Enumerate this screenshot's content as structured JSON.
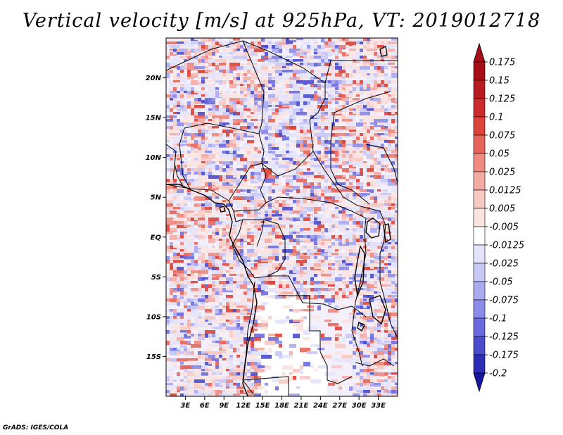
{
  "title": "Vertical velocity [m/s] at 925hPa, VT: 2019012718",
  "credit": "GrADS: IGES/COLA",
  "map": {
    "lon_range": [
      0,
      36
    ],
    "lat_range": [
      -20,
      25
    ],
    "lat_ticks": [
      {
        "value": 20,
        "label": "20N"
      },
      {
        "value": 15,
        "label": "15N"
      },
      {
        "value": 10,
        "label": "10N"
      },
      {
        "value": 5,
        "label": "5N"
      },
      {
        "value": 0,
        "label": "EQ"
      },
      {
        "value": -5,
        "label": "5S"
      },
      {
        "value": -10,
        "label": "10S"
      },
      {
        "value": -15,
        "label": "15S"
      }
    ],
    "lon_ticks": [
      {
        "value": 3,
        "label": "3E"
      },
      {
        "value": 6,
        "label": "6E"
      },
      {
        "value": 9,
        "label": "9E"
      },
      {
        "value": 12,
        "label": "12E"
      },
      {
        "value": 15,
        "label": "15E"
      },
      {
        "value": 18,
        "label": "18E"
      },
      {
        "value": 21,
        "label": "21E"
      },
      {
        "value": 24,
        "label": "24E"
      },
      {
        "value": 27,
        "label": "27E"
      },
      {
        "value": 30,
        "label": "30E"
      },
      {
        "value": 33,
        "label": "33E"
      }
    ]
  },
  "colorbar": {
    "levels": [
      {
        "label": "0.175",
        "color": "#a50f15"
      },
      {
        "label": "0.15",
        "color": "#b81c20"
      },
      {
        "label": "0.125",
        "color": "#cb2b2a"
      },
      {
        "label": "0.1",
        "color": "#dc4339"
      },
      {
        "label": "0.075",
        "color": "#e6655a"
      },
      {
        "label": "0.05",
        "color": "#ee8a80"
      },
      {
        "label": "0.025",
        "color": "#f4aba3"
      },
      {
        "label": "0.0125",
        "color": "#f8c9c3"
      },
      {
        "label": "0.005",
        "color": "#fbe3e0"
      },
      {
        "label": "-0.005",
        "color": "#ffffff"
      },
      {
        "label": "-0.0125",
        "color": "#e3e3fb"
      },
      {
        "label": "-0.025",
        "color": "#c8c8f6"
      },
      {
        "label": "-0.05",
        "color": "#aaaaf0"
      },
      {
        "label": "-0.075",
        "color": "#8b8be8"
      },
      {
        "label": "-0.1",
        "color": "#6a6adc"
      },
      {
        "label": "-0.125",
        "color": "#4b4bcc"
      },
      {
        "label": "-0.175",
        "color": "#2d2db8"
      },
      {
        "label": "-0.2",
        "color": "#1616a0"
      }
    ]
  }
}
